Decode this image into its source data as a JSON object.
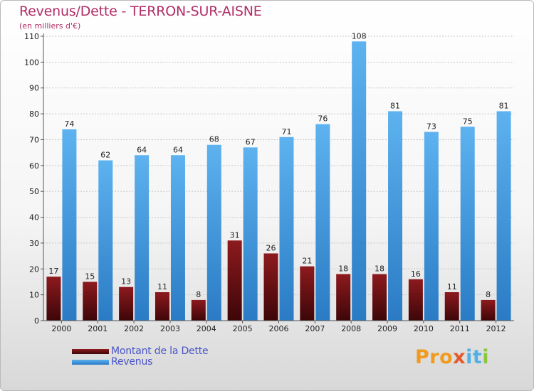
{
  "chart_data": {
    "type": "bar",
    "title": "Revenus/Dette - TERRON-SUR-AISNE",
    "subtitle": "(en milliers d'€)",
    "xlabel": "",
    "ylabel": "",
    "ylim": [
      0,
      110
    ],
    "yticks": [
      0,
      10,
      20,
      30,
      40,
      50,
      60,
      70,
      80,
      90,
      100,
      110
    ],
    "grid": true,
    "categories": [
      "2000",
      "2001",
      "2002",
      "2003",
      "2004",
      "2005",
      "2006",
      "2007",
      "2008",
      "2009",
      "2010",
      "2011",
      "2012"
    ],
    "series": [
      {
        "name": "Montant de la Dette",
        "color": "#6b0f12",
        "values": [
          17,
          15,
          13,
          11,
          8,
          31,
          26,
          21,
          18,
          18,
          16,
          11,
          8
        ]
      },
      {
        "name": "Revenus",
        "color": "#4da3e6",
        "values": [
          74,
          62,
          64,
          64,
          68,
          67,
          71,
          76,
          108,
          81,
          73,
          75,
          81
        ]
      }
    ],
    "legend_position": "bottom-left"
  },
  "logo": {
    "text": "Proxiti",
    "parts": [
      "Pro",
      "x",
      "it",
      "i"
    ]
  }
}
